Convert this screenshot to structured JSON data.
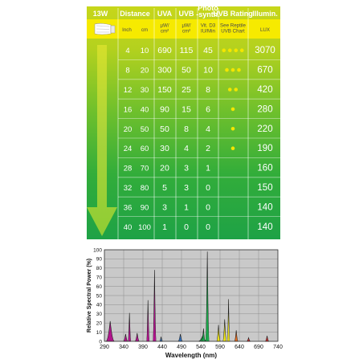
{
  "chart_data": [
    {
      "type": "table",
      "header_row1": [
        "13W",
        "Distance",
        "UVA",
        "UVB",
        "Photo\n-synth.",
        "UVB Rating",
        "Illumin."
      ],
      "header_row2": [
        "Inch",
        "cm",
        "µW/\ncm²",
        "µW/\ncm²",
        "Vit. D3\nIU/Min",
        "See Reptile\nUVB Chart",
        "LUX"
      ],
      "columns": [
        "Inch",
        "cm",
        "UVA",
        "UVB",
        "Vit. D3",
        "UVB Rating",
        "LUX"
      ],
      "rows": [
        {
          "inch": "4",
          "cm": "10",
          "uva": "690",
          "uvb": "115",
          "d3": "45",
          "dots": 4,
          "lux": "3070"
        },
        {
          "inch": "8",
          "cm": "20",
          "uva": "300",
          "uvb": "50",
          "d3": "10",
          "dots": 3,
          "lux": "670"
        },
        {
          "inch": "12",
          "cm": "30",
          "uva": "150",
          "uvb": "25",
          "d3": "8",
          "dots": 2,
          "lux": "420"
        },
        {
          "inch": "16",
          "cm": "40",
          "uva": "90",
          "uvb": "15",
          "d3": "6",
          "dots": 1,
          "lux": "280"
        },
        {
          "inch": "20",
          "cm": "50",
          "uva": "50",
          "uvb": "8",
          "d3": "4",
          "dots": 1,
          "lux": "220"
        },
        {
          "inch": "24",
          "cm": "60",
          "uva": "30",
          "uvb": "4",
          "d3": "2",
          "dots": 1,
          "lux": "190"
        },
        {
          "inch": "28",
          "cm": "70",
          "uva": "20",
          "uvb": "3",
          "d3": "1",
          "dots": 0,
          "lux": "160"
        },
        {
          "inch": "32",
          "cm": "80",
          "uva": "5",
          "uvb": "3",
          "d3": "0",
          "dots": 0,
          "lux": "150"
        },
        {
          "inch": "36",
          "cm": "90",
          "uva": "3",
          "uvb": "1",
          "d3": "0",
          "dots": 0,
          "lux": "140"
        },
        {
          "inch": "40",
          "cm": "100",
          "uva": "1",
          "uvb": "0",
          "d3": "0",
          "dots": 0,
          "lux": "140"
        }
      ]
    },
    {
      "type": "area",
      "xlabel": "Wavelength (nm)",
      "ylabel": "Relative Spectral Power (%)",
      "xlim": [
        290,
        740
      ],
      "ylim": [
        0,
        100
      ],
      "xticks": [
        290,
        340,
        390,
        440,
        490,
        540,
        590,
        640,
        690,
        740
      ],
      "yticks": [
        0,
        10,
        20,
        30,
        40,
        50,
        60,
        70,
        80,
        90,
        100
      ],
      "grid": true,
      "peaks": [
        {
          "x": 305,
          "y": 22,
          "width": 22,
          "color": "#b0148c"
        },
        {
          "x": 345,
          "y": 8,
          "width": 12,
          "color": "#b0148c"
        },
        {
          "x": 355,
          "y": 31,
          "width": 8,
          "color": "#b0148c"
        },
        {
          "x": 375,
          "y": 9,
          "width": 12,
          "color": "#b0148c"
        },
        {
          "x": 403,
          "y": 45,
          "width": 8,
          "color": "#b0148c"
        },
        {
          "x": 420,
          "y": 78,
          "width": 9,
          "color": "#b0148c"
        },
        {
          "x": 437,
          "y": 5,
          "width": 8,
          "color": "#2f6fbf"
        },
        {
          "x": 487,
          "y": 8,
          "width": 12,
          "color": "#2f6fbf"
        },
        {
          "x": 545,
          "y": 6,
          "width": 22,
          "color": "#1aa84a"
        },
        {
          "x": 547,
          "y": 14,
          "width": 10,
          "color": "#1aa84a"
        },
        {
          "x": 557,
          "y": 98,
          "width": 10,
          "color": "#1aa84a"
        },
        {
          "x": 586,
          "y": 18,
          "width": 10,
          "color": "#e9e018"
        },
        {
          "x": 602,
          "y": 24,
          "width": 10,
          "color": "#e9e018"
        },
        {
          "x": 612,
          "y": 46,
          "width": 7,
          "color": "#e9e018"
        },
        {
          "x": 632,
          "y": 12,
          "width": 10,
          "color": "#e56a1e"
        },
        {
          "x": 664,
          "y": 4,
          "width": 10,
          "color": "#d32b2b"
        },
        {
          "x": 712,
          "y": 6,
          "width": 10,
          "color": "#d32b2b"
        }
      ]
    }
  ]
}
